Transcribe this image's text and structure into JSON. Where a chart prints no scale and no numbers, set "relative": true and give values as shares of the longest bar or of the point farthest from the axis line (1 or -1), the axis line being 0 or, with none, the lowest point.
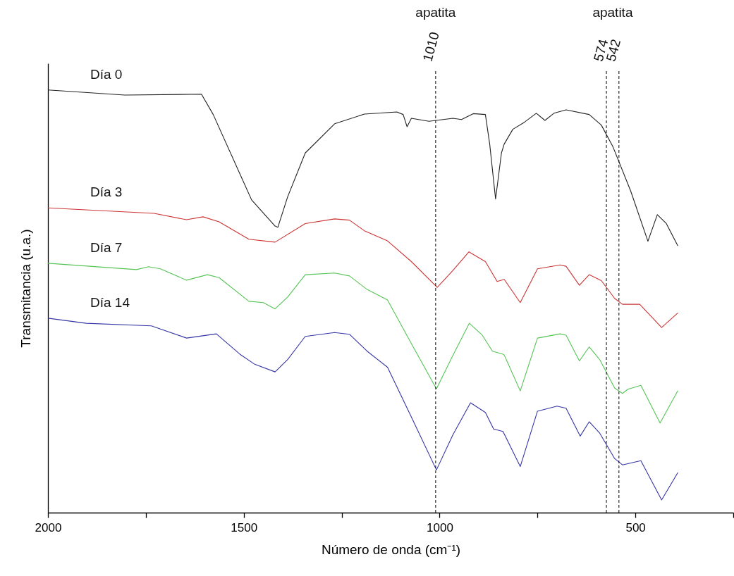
{
  "chart_data": {
    "type": "line",
    "relative": true,
    "xlabel": "Número de onda (cm⁻¹)",
    "ylabel": "Transmitancia (u.a.)",
    "xlim": [
      2000,
      250
    ],
    "xticks": [
      2000,
      {
        "value": 1750,
        "label": null
      },
      1500,
      {
        "value": 1250,
        "label": null
      },
      1000,
      {
        "value": 750,
        "label": null
      },
      500,
      {
        "value": 250,
        "label": null
      }
    ],
    "grid": false,
    "legend": false,
    "marker": "none",
    "line_style": "solid",
    "series": [
      {
        "name": "Día 0",
        "color": "#222222",
        "x": [
          2000,
          1804,
          1608,
          1578,
          1480,
          1420,
          1413,
          1388,
          1343,
          1268,
          1192,
          1109,
          1093,
          1083,
          1072,
          1027,
          966,
          944,
          914,
          883,
          872,
          857,
          842,
          835,
          813,
          783,
          753,
          731,
          708,
          677,
          618,
          587,
          557,
          512,
          468,
          444,
          421,
          392
        ],
        "values": [
          1.0,
          0.988,
          0.99,
          0.942,
          0.74,
          0.678,
          0.675,
          0.747,
          0.851,
          0.92,
          0.943,
          0.948,
          0.942,
          0.913,
          0.933,
          0.926,
          0.933,
          0.93,
          0.944,
          0.942,
          0.872,
          0.742,
          0.851,
          0.872,
          0.907,
          0.924,
          0.945,
          0.928,
          0.945,
          0.953,
          0.942,
          0.917,
          0.865,
          0.761,
          0.642,
          0.705,
          0.684,
          0.632
        ]
      },
      {
        "name": "Día 3",
        "color": "#cc3333",
        "x": [
          2000,
          1729,
          1646,
          1604,
          1563,
          1487,
          1420,
          1343,
          1268,
          1230,
          1192,
          1133,
          1072,
          1006,
          966,
          925,
          883,
          853,
          838,
          835,
          794,
          750,
          692,
          677,
          643,
          618,
          587,
          553,
          533,
          489,
          433,
          392
        ],
        "values": [
          0.721,
          0.708,
          0.693,
          0.7,
          0.688,
          0.647,
          0.64,
          0.684,
          0.695,
          0.692,
          0.667,
          0.643,
          0.594,
          0.533,
          0.573,
          0.617,
          0.594,
          0.547,
          0.551,
          0.552,
          0.497,
          0.577,
          0.586,
          0.583,
          0.538,
          0.563,
          0.549,
          0.507,
          0.493,
          0.493,
          0.438,
          0.472
        ]
      },
      {
        "name": "Día 7",
        "color": "#55c455",
        "x": [
          2000,
          1774,
          1743,
          1713,
          1646,
          1593,
          1563,
          1487,
          1450,
          1420,
          1388,
          1343,
          1268,
          1230,
          1185,
          1133,
          1072,
          1008,
          966,
          924,
          891,
          865,
          838,
          835,
          794,
          750,
          692,
          677,
          643,
          618,
          591,
          553,
          533,
          519,
          486,
          437,
          392
        ],
        "values": [
          0.59,
          0.575,
          0.582,
          0.577,
          0.55,
          0.563,
          0.556,
          0.5,
          0.497,
          0.482,
          0.51,
          0.563,
          0.567,
          0.56,
          0.528,
          0.503,
          0.4,
          0.293,
          0.372,
          0.448,
          0.42,
          0.382,
          0.375,
          0.373,
          0.288,
          0.413,
          0.423,
          0.42,
          0.359,
          0.392,
          0.362,
          0.295,
          0.282,
          0.292,
          0.301,
          0.212,
          0.288
        ]
      },
      {
        "name": "Día 14",
        "color": "#3535a5",
        "x": [
          2000,
          1902,
          1736,
          1646,
          1570,
          1510,
          1472,
          1420,
          1388,
          1343,
          1268,
          1230,
          1185,
          1133,
          1072,
          1008,
          966,
          921,
          883,
          862,
          838,
          794,
          750,
          700,
          677,
          641,
          618,
          591,
          553,
          533,
          486,
          433,
          392
        ],
        "values": [
          0.46,
          0.448,
          0.442,
          0.413,
          0.423,
          0.375,
          0.351,
          0.333,
          0.362,
          0.417,
          0.426,
          0.422,
          0.382,
          0.344,
          0.226,
          0.101,
          0.184,
          0.26,
          0.237,
          0.198,
          0.192,
          0.109,
          0.24,
          0.252,
          0.247,
          0.181,
          0.215,
          0.188,
          0.128,
          0.113,
          0.123,
          0.03,
          0.094
        ]
      }
    ],
    "ref_lines": [
      {
        "axis": "x",
        "value": 1010,
        "label": "1010",
        "color": "#000000",
        "line_style": "dashed"
      },
      {
        "axis": "x",
        "value": 574,
        "label": "574",
        "color": "#000000",
        "line_style": "dashed"
      },
      {
        "axis": "x",
        "value": 542,
        "label": "542",
        "color": "#000000",
        "line_style": "dashed"
      }
    ],
    "annotations": [
      "apatita",
      "apatita"
    ]
  }
}
